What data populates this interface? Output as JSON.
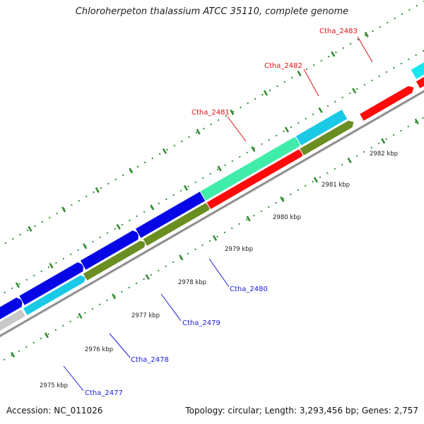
{
  "title": "Chloroherpeton thalassium ATCC 35110, complete genome",
  "footer": {
    "accession": "Accession: NC_011026",
    "summary": "Topology: circular; Length: 3,293,456 bp; Genes: 2,757"
  },
  "colors": {
    "backbone": "#8a8a8a",
    "ruler_ticks": "#2e8b2e",
    "forward_label": "#1a1ad8",
    "reverse_label": "#e01010"
  },
  "ticks": [
    "2975 kbp",
    "2976 kbp",
    "2977 kbp",
    "2978 kbp",
    "2979 kbp",
    "2980 kbp",
    "2981 kbp",
    "2982 kbp"
  ],
  "labels": [
    "Ctha_2477",
    "Ctha_2478",
    "Ctha_2479",
    "Ctha_2480",
    "Ctha_2481",
    "Ctha_2482",
    "Ctha_2483"
  ]
}
